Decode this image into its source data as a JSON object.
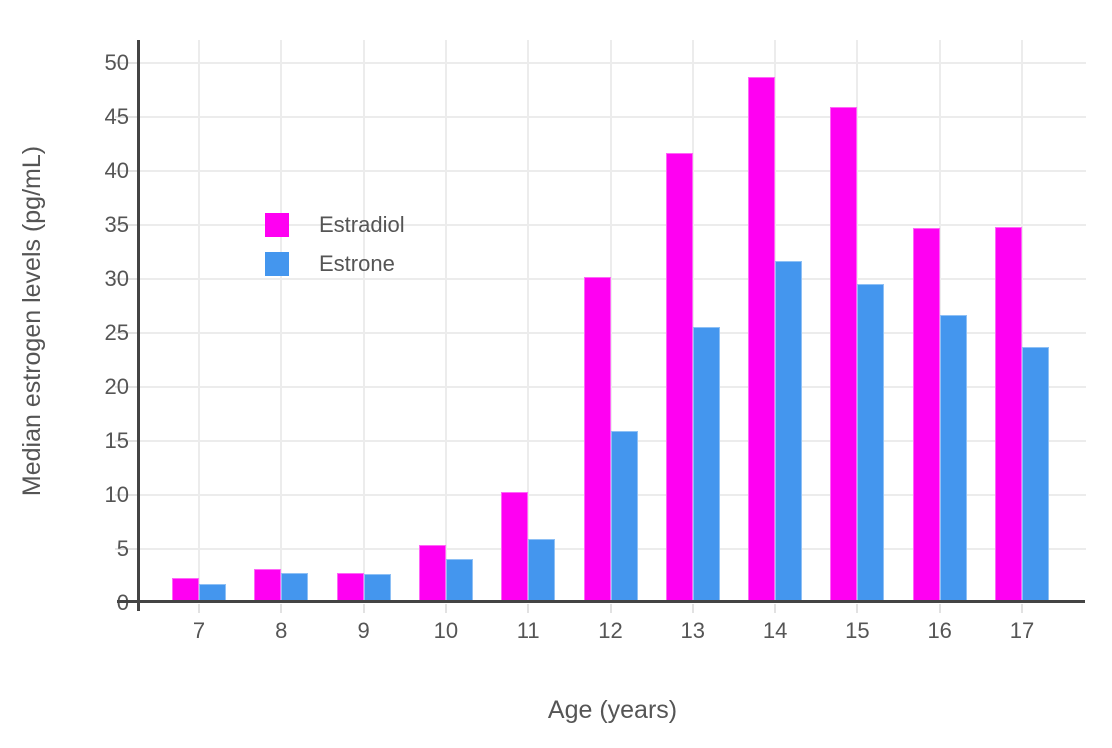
{
  "chart_data": {
    "type": "bar",
    "title": "",
    "xlabel": "Age (years)",
    "ylabel": "Median estrogen levels (pg/mL)",
    "categories": [
      "7",
      "8",
      "9",
      "10",
      "11",
      "12",
      "13",
      "14",
      "15",
      "16",
      "17"
    ],
    "series": [
      {
        "name": "Estradiol",
        "color": "#FF00F2",
        "values": [
          2.2,
          3.1,
          2.7,
          5.3,
          10.2,
          30.1,
          41.6,
          48.6,
          45.8,
          34.6,
          34.7
        ]
      },
      {
        "name": "Estrone",
        "color": "#4496EE",
        "values": [
          1.7,
          2.7,
          2.6,
          4.0,
          5.8,
          15.8,
          25.5,
          31.6,
          29.4,
          26.6,
          23.6
        ]
      }
    ],
    "yticks": [
      "0",
      "5",
      "10",
      "15",
      "20",
      "25",
      "30",
      "35",
      "40",
      "45",
      "50"
    ],
    "ylim": [
      0,
      52
    ],
    "grid": true,
    "legend_position": "inside-top-left",
    "style": {
      "grid_color": "#ECECEC",
      "tick_color": "#E2E2E2",
      "axis_line_color": "#444444",
      "text_color": "#555555",
      "background": "#FFFFFF"
    }
  }
}
